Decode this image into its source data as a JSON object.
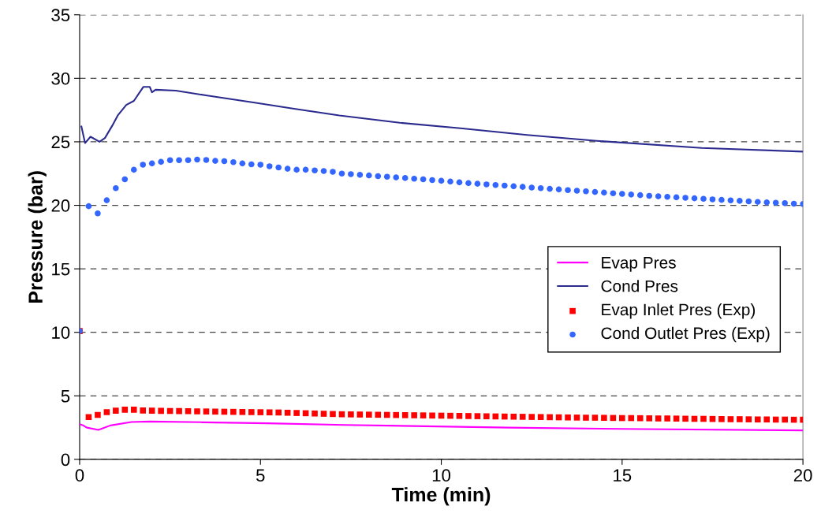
{
  "chart_data": {
    "type": "line",
    "xlabel": "Time (min)",
    "ylabel": "Pressure (bar)",
    "xlim": [
      0,
      20
    ],
    "xticks": [
      0,
      5,
      10,
      15,
      20
    ],
    "ylim": [
      0,
      35
    ],
    "yticks": [
      0,
      5,
      10,
      15,
      20,
      25,
      30,
      35
    ],
    "grid": "y",
    "legend": "right",
    "series": [
      {
        "name": "Evap Pres",
        "color": "#ff00ff",
        "marker": "none",
        "line_style": "solid",
        "x": [
          0,
          0.08,
          0.2,
          0.52,
          0.85,
          1.43,
          1.94,
          3.4,
          5.2,
          7.33,
          11.87,
          15.57,
          20
        ],
        "values": [
          2.77,
          2.7,
          2.5,
          2.32,
          2.67,
          2.94,
          2.98,
          2.92,
          2.84,
          2.71,
          2.5,
          2.38,
          2.28
        ]
      },
      {
        "name": "Cond Pres",
        "color": "#2b2b8f",
        "marker": "none",
        "line_style": "solid",
        "x": [
          0.05,
          0.15,
          0.3,
          0.55,
          0.7,
          0.9,
          1.06,
          1.29,
          1.5,
          1.76,
          1.94,
          2.0,
          2.1,
          2.66,
          3.53,
          4.84,
          5.93,
          7.18,
          8.85,
          10.53,
          12.37,
          14.3,
          17.2,
          20
        ],
        "values": [
          26.2,
          24.9,
          25.4,
          25.0,
          25.3,
          26.26,
          27.1,
          27.9,
          28.22,
          29.32,
          29.32,
          28.9,
          29.1,
          29.03,
          28.64,
          28.08,
          27.6,
          27.07,
          26.5,
          26.07,
          25.54,
          25.07,
          24.52,
          24.23
        ]
      },
      {
        "name": "Evap Inlet Pres (Exp)",
        "type": "scatter",
        "color": "#ff0000",
        "marker": "square",
        "x": [
          0,
          0.25,
          0.5,
          0.75,
          1,
          1.25,
          1.5,
          1.75,
          2,
          2.25,
          2.5,
          2.75,
          3,
          3.25,
          3.5,
          3.75,
          4,
          4.25,
          4.5,
          4.75,
          5,
          5.25,
          5.5,
          5.75,
          6,
          6.25,
          6.5,
          6.75,
          7,
          7.25,
          7.5,
          7.75,
          8,
          8.25,
          8.5,
          8.75,
          9,
          9.25,
          9.5,
          9.75,
          10,
          10.25,
          10.5,
          10.75,
          11,
          11.25,
          11.5,
          11.75,
          12,
          12.25,
          12.5,
          12.75,
          13,
          13.25,
          13.5,
          13.75,
          14,
          14.25,
          14.5,
          14.75,
          15,
          15.25,
          15.5,
          15.75,
          16,
          16.25,
          16.5,
          16.75,
          17,
          17.25,
          17.5,
          17.75,
          18,
          18.25,
          18.5,
          18.75,
          19,
          19.25,
          19.5,
          19.75,
          20
        ],
        "values": [
          10.1,
          3.33,
          3.5,
          3.72,
          3.83,
          3.91,
          3.91,
          3.85,
          3.83,
          3.82,
          3.81,
          3.8,
          3.79,
          3.78,
          3.77,
          3.76,
          3.75,
          3.74,
          3.73,
          3.72,
          3.71,
          3.7,
          3.69,
          3.67,
          3.65,
          3.63,
          3.61,
          3.59,
          3.57,
          3.55,
          3.54,
          3.53,
          3.52,
          3.51,
          3.5,
          3.49,
          3.48,
          3.47,
          3.46,
          3.45,
          3.44,
          3.43,
          3.42,
          3.41,
          3.4,
          3.39,
          3.38,
          3.37,
          3.36,
          3.35,
          3.34,
          3.33,
          3.32,
          3.31,
          3.3,
          3.29,
          3.28,
          3.28,
          3.27,
          3.26,
          3.25,
          3.25,
          3.24,
          3.23,
          3.22,
          3.22,
          3.21,
          3.2,
          3.19,
          3.19,
          3.18,
          3.17,
          3.16,
          3.16,
          3.15,
          3.14,
          3.14,
          3.13,
          3.13,
          3.12,
          3.12
        ]
      },
      {
        "name": "Cond Outlet Pres (Exp)",
        "type": "scatter",
        "color": "#3366ff",
        "marker": "circle",
        "x": [
          0,
          0.25,
          0.5,
          0.75,
          1,
          1.25,
          1.5,
          1.75,
          2,
          2.25,
          2.5,
          2.75,
          3,
          3.25,
          3.5,
          3.75,
          4,
          4.25,
          4.5,
          4.75,
          5,
          5.25,
          5.5,
          5.75,
          6,
          6.25,
          6.5,
          6.75,
          7,
          7.25,
          7.5,
          7.75,
          8,
          8.25,
          8.5,
          8.75,
          9,
          9.25,
          9.5,
          9.75,
          10,
          10.25,
          10.5,
          10.75,
          11,
          11.25,
          11.5,
          11.75,
          12,
          12.25,
          12.5,
          12.75,
          13,
          13.25,
          13.5,
          13.75,
          14,
          14.25,
          14.5,
          14.75,
          15,
          15.25,
          15.5,
          15.75,
          16,
          16.25,
          16.5,
          16.75,
          17,
          17.25,
          17.5,
          17.75,
          18,
          18.25,
          18.5,
          18.75,
          19,
          19.25,
          19.5,
          19.75,
          20
        ],
        "values": [
          10.1,
          19.93,
          19.37,
          20.4,
          21.35,
          22.05,
          22.8,
          23.2,
          23.3,
          23.42,
          23.55,
          23.55,
          23.55,
          23.6,
          23.57,
          23.5,
          23.48,
          23.4,
          23.3,
          23.23,
          23.2,
          23.07,
          22.98,
          22.88,
          22.8,
          22.8,
          22.75,
          22.7,
          22.64,
          22.5,
          22.45,
          22.4,
          22.35,
          22.3,
          22.25,
          22.2,
          22.15,
          22.1,
          22.05,
          21.99,
          21.93,
          21.87,
          21.81,
          21.75,
          21.7,
          21.65,
          21.6,
          21.55,
          21.5,
          21.45,
          21.4,
          21.35,
          21.3,
          21.25,
          21.2,
          21.15,
          21.1,
          21.05,
          21.0,
          20.95,
          20.9,
          20.85,
          20.8,
          20.75,
          20.71,
          20.67,
          20.63,
          20.59,
          20.55,
          20.51,
          20.47,
          20.43,
          20.39,
          20.35,
          20.31,
          20.27,
          20.23,
          20.2,
          20.17,
          20.13,
          20.1
        ]
      }
    ]
  }
}
